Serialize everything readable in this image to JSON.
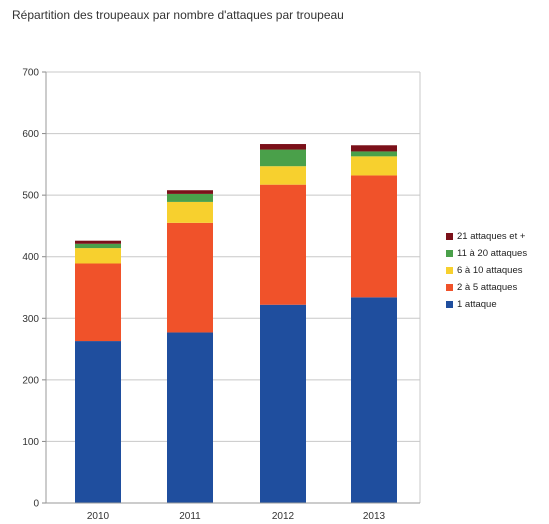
{
  "chart_data": {
    "type": "bar",
    "stacked": true,
    "title": "Répartition des troupeaux par nombre d'attaques par troupeau",
    "xlabel": "",
    "ylabel": "",
    "ylim": [
      0,
      700
    ],
    "yticks": [
      "0",
      "100",
      "200",
      "300",
      "400",
      "500",
      "600",
      "700"
    ],
    "grid": true,
    "legend_position": "right",
    "categories": [
      "2010",
      "2011",
      "2012",
      "2013"
    ],
    "series": [
      {
        "name": "1 attaque",
        "color": "#1f4e9e",
        "values": [
          263,
          277,
          322,
          334
        ]
      },
      {
        "name": "2 à 5 attaques",
        "color": "#f0522a",
        "values": [
          126,
          178,
          195,
          198
        ]
      },
      {
        "name": "6 à 10 attaques",
        "color": "#f7d02e",
        "values": [
          25,
          34,
          30,
          31
        ]
      },
      {
        "name": "11 à 20 attaques",
        "color": "#4aa04a",
        "values": [
          7,
          13,
          27,
          8
        ]
      },
      {
        "name": "21 attaques et +",
        "color": "#7b1019",
        "values": [
          5,
          6,
          9,
          10
        ]
      }
    ]
  }
}
